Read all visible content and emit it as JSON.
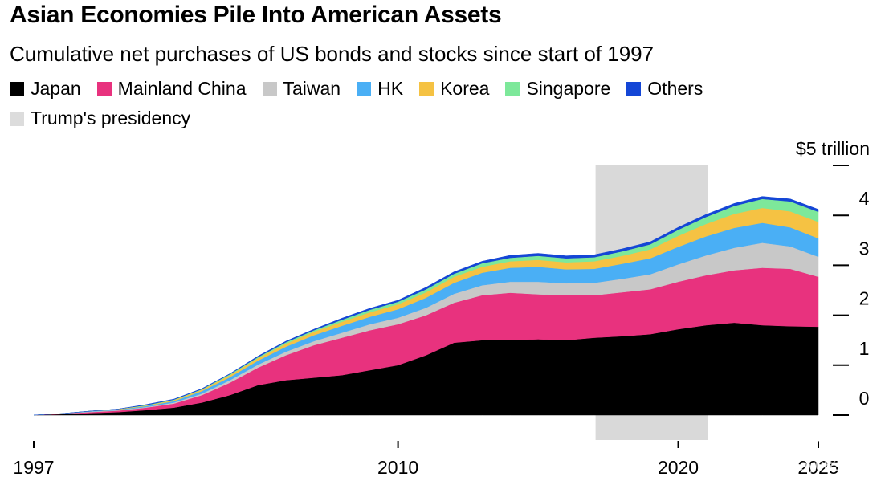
{
  "title": "Asian Economies Pile Into American Assets",
  "subtitle": "Cumulative net purchases of US bonds and stocks since start of 1997",
  "legend": [
    {
      "label": "Japan",
      "color": "#000000"
    },
    {
      "label": "Mainland China",
      "color": "#e8327e"
    },
    {
      "label": "Taiwan",
      "color": "#c8c8c8"
    },
    {
      "label": "HK",
      "color": "#4aaff5"
    },
    {
      "label": "Korea",
      "color": "#f5c243"
    },
    {
      "label": "Singapore",
      "color": "#7de89a"
    },
    {
      "label": "Others",
      "color": "#1446d6"
    },
    {
      "label": "Trump's presidency",
      "color": "#dcdcdc"
    }
  ],
  "watermark": {
    "brand": "Tiger Community",
    "user": "@Mickey082024"
  },
  "chart_data": {
    "type": "area",
    "stacked": true,
    "title": "Asian Economies Pile Into American Assets",
    "subtitle": "Cumulative net purchases of US bonds and stocks since start of 1997",
    "unit_label": "$5 trillion",
    "xlim": [
      1997,
      2025
    ],
    "ylim": [
      0,
      5
    ],
    "x_ticks": [
      1997,
      2010,
      2020,
      2025
    ],
    "x_tick_labels": [
      "1997",
      "2010",
      "2020",
      "2025"
    ],
    "y_ticks": [
      0,
      1,
      2,
      3,
      4,
      5
    ],
    "y_tick_labels": [
      "0",
      "1",
      "2",
      "3",
      "4",
      "$5 trillion"
    ],
    "shaded_period": {
      "label": "Trump's presidency",
      "start": 2017.05,
      "end": 2021.05,
      "color": "#d9d9d9"
    },
    "x": [
      1997,
      1998,
      1999,
      2000,
      2001,
      2002,
      2003,
      2004,
      2005,
      2006,
      2007,
      2008,
      2009,
      2010,
      2011,
      2012,
      2013,
      2014,
      2015,
      2016,
      2017,
      2018,
      2019,
      2020,
      2021,
      2022,
      2023,
      2024,
      2025
    ],
    "series": [
      {
        "name": "Japan",
        "color": "#000000",
        "values": [
          0,
          0.02,
          0.04,
          0.06,
          0.1,
          0.15,
          0.25,
          0.4,
          0.6,
          0.7,
          0.75,
          0.8,
          0.9,
          1.0,
          1.2,
          1.45,
          1.5,
          1.5,
          1.52,
          1.5,
          1.55,
          1.58,
          1.62,
          1.72,
          1.8,
          1.85,
          1.8,
          1.78,
          1.77
        ]
      },
      {
        "name": "Mainland China",
        "color": "#e8327e",
        "values": [
          0,
          0.01,
          0.02,
          0.03,
          0.05,
          0.08,
          0.15,
          0.25,
          0.35,
          0.5,
          0.65,
          0.75,
          0.8,
          0.82,
          0.8,
          0.8,
          0.9,
          0.95,
          0.9,
          0.9,
          0.85,
          0.88,
          0.9,
          0.95,
          1.0,
          1.05,
          1.15,
          1.15,
          1.0
        ]
      },
      {
        "name": "Taiwan",
        "color": "#c8c8c8",
        "values": [
          0,
          0,
          0.01,
          0.01,
          0.01,
          0.02,
          0.03,
          0.05,
          0.06,
          0.07,
          0.08,
          0.1,
          0.12,
          0.13,
          0.15,
          0.18,
          0.2,
          0.22,
          0.25,
          0.24,
          0.25,
          0.27,
          0.3,
          0.35,
          0.4,
          0.45,
          0.5,
          0.45,
          0.4
        ]
      },
      {
        "name": "HK",
        "color": "#4aaff5",
        "values": [
          0,
          0,
          0.01,
          0.01,
          0.02,
          0.03,
          0.05,
          0.06,
          0.08,
          0.1,
          0.12,
          0.14,
          0.15,
          0.17,
          0.2,
          0.22,
          0.25,
          0.28,
          0.3,
          0.28,
          0.28,
          0.3,
          0.32,
          0.35,
          0.38,
          0.4,
          0.4,
          0.38,
          0.37
        ]
      },
      {
        "name": "Korea",
        "color": "#f5c243",
        "values": [
          0,
          0,
          0,
          0.01,
          0.01,
          0.02,
          0.03,
          0.04,
          0.05,
          0.06,
          0.07,
          0.08,
          0.09,
          0.1,
          0.11,
          0.12,
          0.12,
          0.13,
          0.14,
          0.14,
          0.15,
          0.16,
          0.18,
          0.22,
          0.25,
          0.28,
          0.3,
          0.32,
          0.33
        ]
      },
      {
        "name": "Singapore",
        "color": "#7de89a",
        "values": [
          0,
          0,
          0,
          0,
          0.01,
          0.01,
          0.01,
          0.02,
          0.02,
          0.03,
          0.03,
          0.04,
          0.05,
          0.05,
          0.06,
          0.06,
          0.07,
          0.07,
          0.08,
          0.08,
          0.08,
          0.09,
          0.1,
          0.12,
          0.14,
          0.16,
          0.18,
          0.2,
          0.2
        ]
      },
      {
        "name": "Others",
        "color": "#1446d6",
        "values": [
          0,
          0,
          0,
          0,
          0.01,
          0.01,
          0.01,
          0.01,
          0.02,
          0.02,
          0.02,
          0.03,
          0.03,
          0.03,
          0.04,
          0.04,
          0.04,
          0.05,
          0.05,
          0.05,
          0.05,
          0.05,
          0.05,
          0.05,
          0.05,
          0.05,
          0.05,
          0.05,
          0.05
        ]
      }
    ]
  }
}
